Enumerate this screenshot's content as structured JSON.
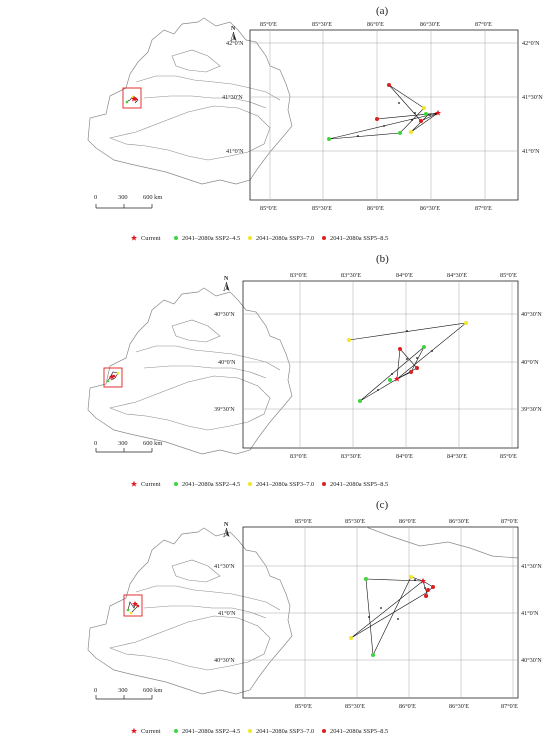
{
  "legend": {
    "current": "Current",
    "ssp245": "2041–2080a SSP2–4.5",
    "ssp370": "2041–2080a SSP3–7.0",
    "ssp585": "2041–2080a SSP5–8.5"
  },
  "colors": {
    "current": "#e6141e",
    "ssp245": "#3dd43d",
    "ssp370": "#f2e62c",
    "ssp585": "#d92121",
    "outline": "#8a8a8a",
    "grid": "#a8a8a8",
    "frame": "#222222",
    "highlight_box": "#e31a1c"
  },
  "icons": {
    "north_arrow": "north-arrow-icon",
    "current_marker": "red-star-icon",
    "ssp_marker": "filled-circle-icon"
  },
  "scale_bar": {
    "labels": [
      "0",
      "300",
      "600 km"
    ]
  },
  "north_letter": "N",
  "panels": [
    {
      "label": "(a)",
      "lon_labels": [
        "85°0′E",
        "85°30′E",
        "86°0′E",
        "86°30′E",
        "87°0′E"
      ],
      "lat_labels": [
        "42°0′N",
        "41°30′N",
        "41°0′N"
      ]
    },
    {
      "label": "(b)",
      "lon_labels": [
        "83°0′E",
        "83°30′E",
        "84°0′E",
        "84°30′E",
        "85°0′E"
      ],
      "lat_labels": [
        "40°30′N",
        "40°0′N",
        "39°30′N"
      ]
    },
    {
      "label": "(c)",
      "lon_labels": [
        "85°0′E",
        "85°30′E",
        "86°0′E",
        "86°30′E",
        "87°0′E"
      ],
      "lat_labels": [
        "41°30′N",
        "41°0′N",
        "40°30′N"
      ]
    }
  ]
}
